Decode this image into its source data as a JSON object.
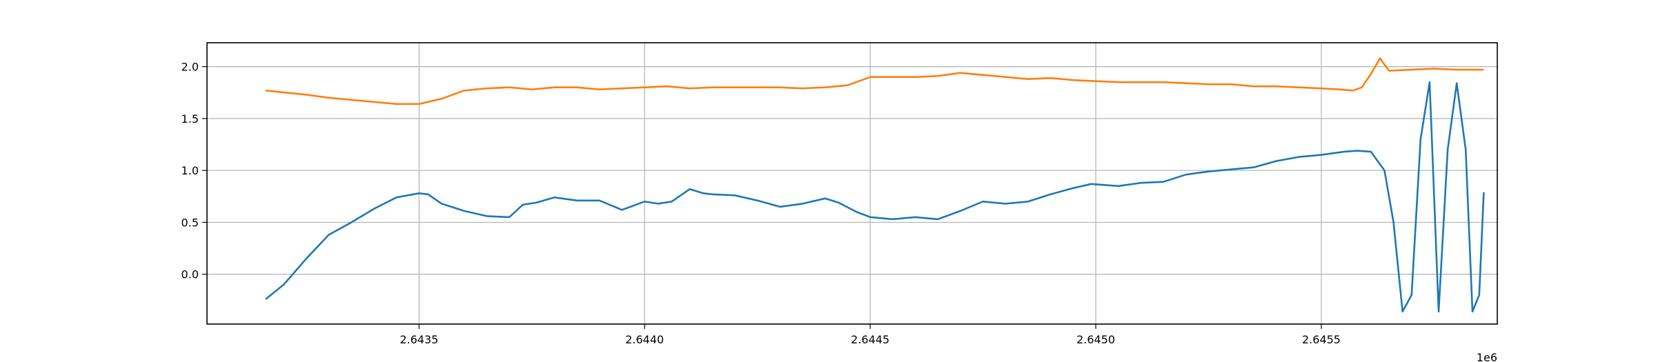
{
  "chart_data": {
    "type": "line",
    "title": "",
    "xlabel": "",
    "ylabel": "",
    "x_offset_label": "1e6",
    "x_tick_values": [
      2643500,
      2644000,
      2644500,
      2645000,
      2645500
    ],
    "x_tick_labels": [
      "2.6435",
      "2.6440",
      "2.6445",
      "2.6450",
      "2.6455"
    ],
    "y_tick_values": [
      0.0,
      0.5,
      1.0,
      1.5,
      2.0
    ],
    "y_tick_labels": [
      "0.0",
      "0.5",
      "1.0",
      "1.5",
      "2.0"
    ],
    "xlim": [
      2643030,
      2645890
    ],
    "ylim": [
      -0.48,
      2.23
    ],
    "grid": true,
    "legend": "none",
    "series": [
      {
        "color": "#1f77b4",
        "x": [
          2643160,
          2643200,
          2643250,
          2643300,
          2643350,
          2643400,
          2643450,
          2643500,
          2643520,
          2643550,
          2643600,
          2643650,
          2643700,
          2643730,
          2643760,
          2643800,
          2643850,
          2643900,
          2643950,
          2644000,
          2644030,
          2644060,
          2644100,
          2644130,
          2644150,
          2644200,
          2644250,
          2644300,
          2644350,
          2644400,
          2644430,
          2644470,
          2644500,
          2644550,
          2644600,
          2644650,
          2644700,
          2644750,
          2644800,
          2644850,
          2644900,
          2644950,
          2644990,
          2645050,
          2645100,
          2645150,
          2645200,
          2645250,
          2645300,
          2645350,
          2645400,
          2645450,
          2645500,
          2645550,
          2645580,
          2645610,
          2645640,
          2645660,
          2645680,
          2645700,
          2645720,
          2645740,
          2645760,
          2645780,
          2645800,
          2645820,
          2645835,
          2645850,
          2645860
        ],
        "values": [
          -0.24,
          -0.1,
          0.15,
          0.38,
          0.5,
          0.63,
          0.74,
          0.78,
          0.77,
          0.68,
          0.61,
          0.56,
          0.55,
          0.67,
          0.69,
          0.74,
          0.71,
          0.71,
          0.62,
          0.7,
          0.68,
          0.7,
          0.82,
          0.78,
          0.77,
          0.76,
          0.71,
          0.65,
          0.68,
          0.73,
          0.69,
          0.6,
          0.55,
          0.53,
          0.55,
          0.53,
          0.61,
          0.7,
          0.68,
          0.7,
          0.77,
          0.83,
          0.87,
          0.85,
          0.88,
          0.89,
          0.96,
          0.99,
          1.01,
          1.03,
          1.09,
          1.13,
          1.15,
          1.18,
          1.19,
          1.18,
          1.0,
          0.5,
          -0.36,
          -0.2,
          1.3,
          1.85,
          -0.36,
          1.2,
          1.84,
          1.2,
          -0.36,
          -0.2,
          0.79
        ]
      },
      {
        "color": "#ff7f0e",
        "x": [
          2643160,
          2643250,
          2643300,
          2643350,
          2643400,
          2643450,
          2643500,
          2643550,
          2643600,
          2643650,
          2643700,
          2643750,
          2643800,
          2643850,
          2643900,
          2643950,
          2644000,
          2644050,
          2644100,
          2644150,
          2644200,
          2644250,
          2644300,
          2644350,
          2644400,
          2644450,
          2644500,
          2644550,
          2644600,
          2644650,
          2644700,
          2644750,
          2644800,
          2644850,
          2644900,
          2644950,
          2645000,
          2645050,
          2645100,
          2645150,
          2645200,
          2645250,
          2645300,
          2645350,
          2645400,
          2645450,
          2645500,
          2645540,
          2645570,
          2645590,
          2645610,
          2645630,
          2645650,
          2645700,
          2645750,
          2645800,
          2645860
        ],
        "values": [
          1.77,
          1.73,
          1.7,
          1.68,
          1.66,
          1.64,
          1.64,
          1.69,
          1.77,
          1.79,
          1.8,
          1.78,
          1.8,
          1.8,
          1.78,
          1.79,
          1.8,
          1.81,
          1.79,
          1.8,
          1.8,
          1.8,
          1.8,
          1.79,
          1.8,
          1.82,
          1.9,
          1.9,
          1.9,
          1.91,
          1.94,
          1.92,
          1.9,
          1.88,
          1.89,
          1.87,
          1.86,
          1.85,
          1.85,
          1.85,
          1.84,
          1.83,
          1.83,
          1.81,
          1.81,
          1.8,
          1.79,
          1.78,
          1.77,
          1.8,
          1.93,
          2.08,
          1.96,
          1.97,
          1.98,
          1.97,
          1.97
        ]
      }
    ]
  }
}
